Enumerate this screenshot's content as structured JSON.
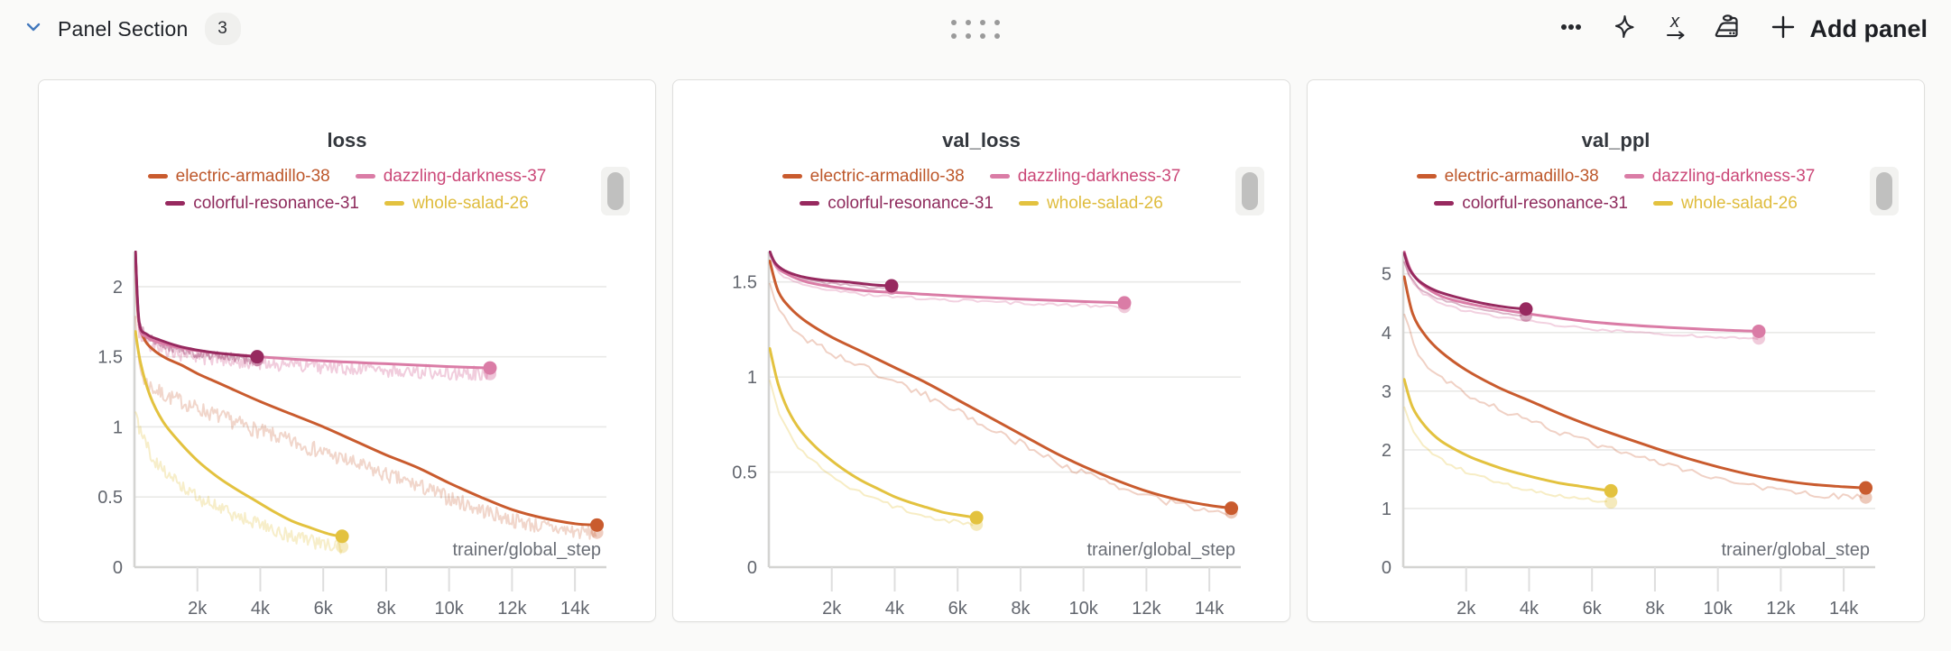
{
  "header": {
    "title": "Panel Section",
    "panel_count": "3",
    "add_panel_label": "Add panel",
    "accent_blue": "#4379bd",
    "icon_color": "#26282d"
  },
  "runs": [
    {
      "name": "electric-armadillo-38",
      "color": "#c95b2e",
      "text_color": "#bd572a"
    },
    {
      "name": "dazzling-darkness-37",
      "color": "#da7ca6",
      "text_color": "#cb4878"
    },
    {
      "name": "colorful-resonance-31",
      "color": "#97295f",
      "text_color": "#8e2a5c"
    },
    {
      "name": "whole-salad-26",
      "color": "#e3c23f",
      "text_color": "#dfbc3d"
    }
  ],
  "chart_data": [
    {
      "type": "line",
      "title": "loss",
      "xlabel": "trainer/global_step",
      "xlim": [
        0,
        15000
      ],
      "xticks": [
        2000,
        4000,
        6000,
        8000,
        10000,
        12000,
        14000
      ],
      "ylim": [
        0,
        2.25
      ],
      "yticks": [
        0,
        0.5,
        1,
        1.5,
        2
      ],
      "grid": "horizontal",
      "legend_position": "top",
      "series": [
        {
          "run": 0,
          "x": [
            30,
            120,
            300,
            600,
            1000,
            1500,
            2000,
            2500,
            3000,
            4000,
            5000,
            6000,
            7000,
            8000,
            9000,
            10000,
            11000,
            12000,
            13000,
            14000,
            14700
          ],
          "y": [
            2.25,
            1.78,
            1.63,
            1.55,
            1.49,
            1.44,
            1.38,
            1.33,
            1.28,
            1.18,
            1.09,
            1.0,
            0.9,
            0.8,
            0.71,
            0.6,
            0.5,
            0.41,
            0.35,
            0.31,
            0.3
          ],
          "end_dot": true,
          "raw": {
            "factor": 0.82,
            "noise": 0.055,
            "step": 40,
            "opacity": 0.25
          }
        },
        {
          "run": 1,
          "x": [
            30,
            150,
            400,
            800,
            1500,
            2500,
            4000,
            6000,
            8000,
            10000,
            11300
          ],
          "y": [
            2.25,
            1.73,
            1.64,
            1.6,
            1.56,
            1.53,
            1.5,
            1.47,
            1.45,
            1.43,
            1.42
          ],
          "end_dot": true,
          "raw": {
            "factor": 0.97,
            "noise": 0.05,
            "step": 40,
            "opacity": 0.38
          }
        },
        {
          "run": 2,
          "x": [
            30,
            150,
            400,
            800,
            1500,
            2500,
            3400,
            3900
          ],
          "y": [
            2.25,
            1.75,
            1.66,
            1.62,
            1.57,
            1.53,
            1.51,
            1.5
          ],
          "end_dot": true,
          "raw": {
            "factor": 0.985,
            "noise": 0.035,
            "step": 40,
            "opacity": 0.38
          }
        },
        {
          "run": 3,
          "x": [
            30,
            200,
            500,
            900,
            1400,
            2000,
            2600,
            3200,
            3800,
            4400,
            5000,
            5600,
            6200,
            6600
          ],
          "y": [
            1.68,
            1.45,
            1.22,
            1.04,
            0.9,
            0.76,
            0.65,
            0.56,
            0.48,
            0.4,
            0.33,
            0.28,
            0.235,
            0.22
          ],
          "end_dot": true,
          "raw": {
            "factor": 0.66,
            "noise": 0.05,
            "step": 40,
            "opacity": 0.28
          }
        }
      ]
    },
    {
      "type": "line",
      "title": "val_loss",
      "xlabel": "trainer/global_step",
      "xlim": [
        0,
        15000
      ],
      "xticks": [
        2000,
        4000,
        6000,
        8000,
        10000,
        12000,
        14000
      ],
      "ylim": [
        0,
        1.66
      ],
      "yticks": [
        0,
        0.5,
        1,
        1.5
      ],
      "grid": "horizontal",
      "legend_position": "top",
      "series": [
        {
          "run": 0,
          "x": [
            30,
            300,
            700,
            1200,
            2000,
            3000,
            4000,
            5000,
            6000,
            7000,
            8000,
            9000,
            10000,
            11000,
            12000,
            13000,
            14000,
            14700
          ],
          "y": [
            1.61,
            1.45,
            1.36,
            1.29,
            1.21,
            1.13,
            1.05,
            0.97,
            0.88,
            0.79,
            0.7,
            0.61,
            0.53,
            0.46,
            0.4,
            0.355,
            0.325,
            0.31
          ],
          "end_dot": true,
          "raw": {
            "factor": 0.93,
            "noise": 0.02,
            "step": 150,
            "opacity": 0.28
          }
        },
        {
          "run": 1,
          "x": [
            30,
            250,
            600,
            1200,
            2000,
            3000,
            4500,
            6000,
            8000,
            9500,
            11300
          ],
          "y": [
            1.66,
            1.58,
            1.54,
            1.5,
            1.475,
            1.455,
            1.44,
            1.425,
            1.41,
            1.4,
            1.39
          ],
          "end_dot": true,
          "raw": {
            "factor": 0.985,
            "noise": 0.008,
            "step": 150,
            "opacity": 0.35
          }
        },
        {
          "run": 2,
          "x": [
            30,
            200,
            500,
            1000,
            1700,
            2500,
            3300,
            3900
          ],
          "y": [
            1.66,
            1.6,
            1.56,
            1.53,
            1.51,
            1.5,
            1.485,
            1.48
          ],
          "end_dot": true,
          "raw": {
            "factor": 0.99,
            "noise": 0.006,
            "step": 150,
            "opacity": 0.35
          }
        },
        {
          "run": 3,
          "x": [
            30,
            300,
            600,
            1000,
            1500,
            2000,
            2500,
            3000,
            3500,
            4000,
            4500,
            5000,
            5500,
            6000,
            6600
          ],
          "y": [
            1.15,
            0.96,
            0.83,
            0.72,
            0.63,
            0.56,
            0.5,
            0.45,
            0.41,
            0.37,
            0.34,
            0.315,
            0.29,
            0.275,
            0.26
          ],
          "end_dot": true,
          "raw": {
            "factor": 0.86,
            "noise": 0.012,
            "step": 150,
            "opacity": 0.3
          }
        }
      ]
    },
    {
      "type": "line",
      "title": "val_ppl",
      "xlabel": "trainer/global_step",
      "xlim": [
        0,
        15000
      ],
      "xticks": [
        2000,
        4000,
        6000,
        8000,
        10000,
        12000,
        14000
      ],
      "ylim": [
        0,
        5.38
      ],
      "yticks": [
        0,
        1,
        2,
        3,
        4,
        5
      ],
      "grid": "horizontal",
      "legend_position": "top",
      "series": [
        {
          "run": 0,
          "x": [
            30,
            300,
            700,
            1200,
            2000,
            3000,
            4000,
            5000,
            6000,
            7000,
            8000,
            9000,
            10000,
            11000,
            12000,
            13000,
            14000,
            14700
          ],
          "y": [
            4.95,
            4.32,
            3.95,
            3.67,
            3.36,
            3.07,
            2.84,
            2.61,
            2.4,
            2.21,
            2.03,
            1.86,
            1.71,
            1.58,
            1.48,
            1.41,
            1.37,
            1.35
          ],
          "end_dot": true,
          "raw": {
            "factor": 0.88,
            "noise": 0.05,
            "step": 150,
            "opacity": 0.28
          }
        },
        {
          "run": 1,
          "x": [
            30,
            250,
            600,
            1200,
            2000,
            3000,
            4500,
            6000,
            8000,
            9800,
            11300
          ],
          "y": [
            5.38,
            5.05,
            4.82,
            4.62,
            4.5,
            4.4,
            4.28,
            4.18,
            4.1,
            4.05,
            4.02
          ],
          "end_dot": true,
          "raw": {
            "factor": 0.97,
            "noise": 0.02,
            "step": 150,
            "opacity": 0.35
          }
        },
        {
          "run": 2,
          "x": [
            30,
            200,
            500,
            1000,
            1700,
            2500,
            3300,
            3900
          ],
          "y": [
            5.35,
            5.08,
            4.88,
            4.72,
            4.6,
            4.5,
            4.43,
            4.4
          ],
          "end_dot": true,
          "raw": {
            "factor": 0.975,
            "noise": 0.015,
            "step": 150,
            "opacity": 0.35
          }
        },
        {
          "run": 3,
          "x": [
            30,
            300,
            700,
            1200,
            2000,
            2600,
            3200,
            3800,
            4400,
            5000,
            5600,
            6200,
            6600
          ],
          "y": [
            3.2,
            2.72,
            2.4,
            2.15,
            1.91,
            1.78,
            1.67,
            1.58,
            1.5,
            1.43,
            1.38,
            1.33,
            1.3
          ],
          "end_dot": true,
          "raw": {
            "factor": 0.85,
            "noise": 0.03,
            "step": 150,
            "opacity": 0.3
          }
        }
      ]
    }
  ],
  "style": {
    "grid_color": "#e9e9e7",
    "axis_color": "#d4d4d2",
    "tick_color": "#dedede",
    "tick_text_color": "#62666e",
    "xlabel_color": "#6a6e76"
  }
}
